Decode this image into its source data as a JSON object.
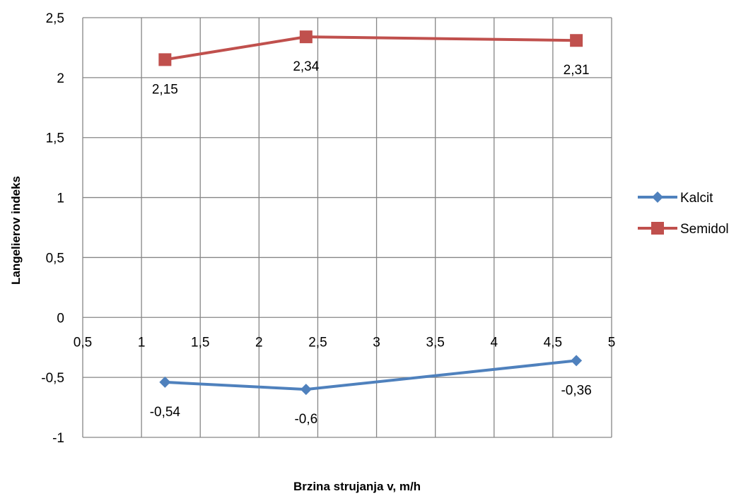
{
  "chart_data": {
    "type": "line",
    "xlabel": "Brzina strujanja v, m/h",
    "ylabel": "Langelierov indeks",
    "xlim": [
      0.5,
      5
    ],
    "ylim": [
      -1,
      2.5
    ],
    "x_ticks": [
      "0,5",
      "1",
      "1,5",
      "2",
      "2,5",
      "3",
      "3,5",
      "4",
      "4,5",
      "5"
    ],
    "y_ticks": [
      "2,5",
      "2",
      "1,5",
      "1",
      "0,5",
      "0",
      "-0,5",
      "-1"
    ],
    "grid": true,
    "legend_position": "right",
    "series": [
      {
        "name": "Kalcit",
        "color": "#4F81BD",
        "marker": "diamond",
        "x": [
          1.2,
          2.4,
          4.7
        ],
        "y": [
          -0.54,
          -0.6,
          -0.36
        ],
        "labels": [
          "-0,54",
          "-0,6",
          "-0,36"
        ]
      },
      {
        "name": "Semidol",
        "color": "#C0504D",
        "marker": "square",
        "x": [
          1.2,
          2.4,
          4.7
        ],
        "y": [
          2.15,
          2.34,
          2.31
        ],
        "labels": [
          "2,15",
          "2,34",
          "2,31"
        ]
      }
    ]
  }
}
